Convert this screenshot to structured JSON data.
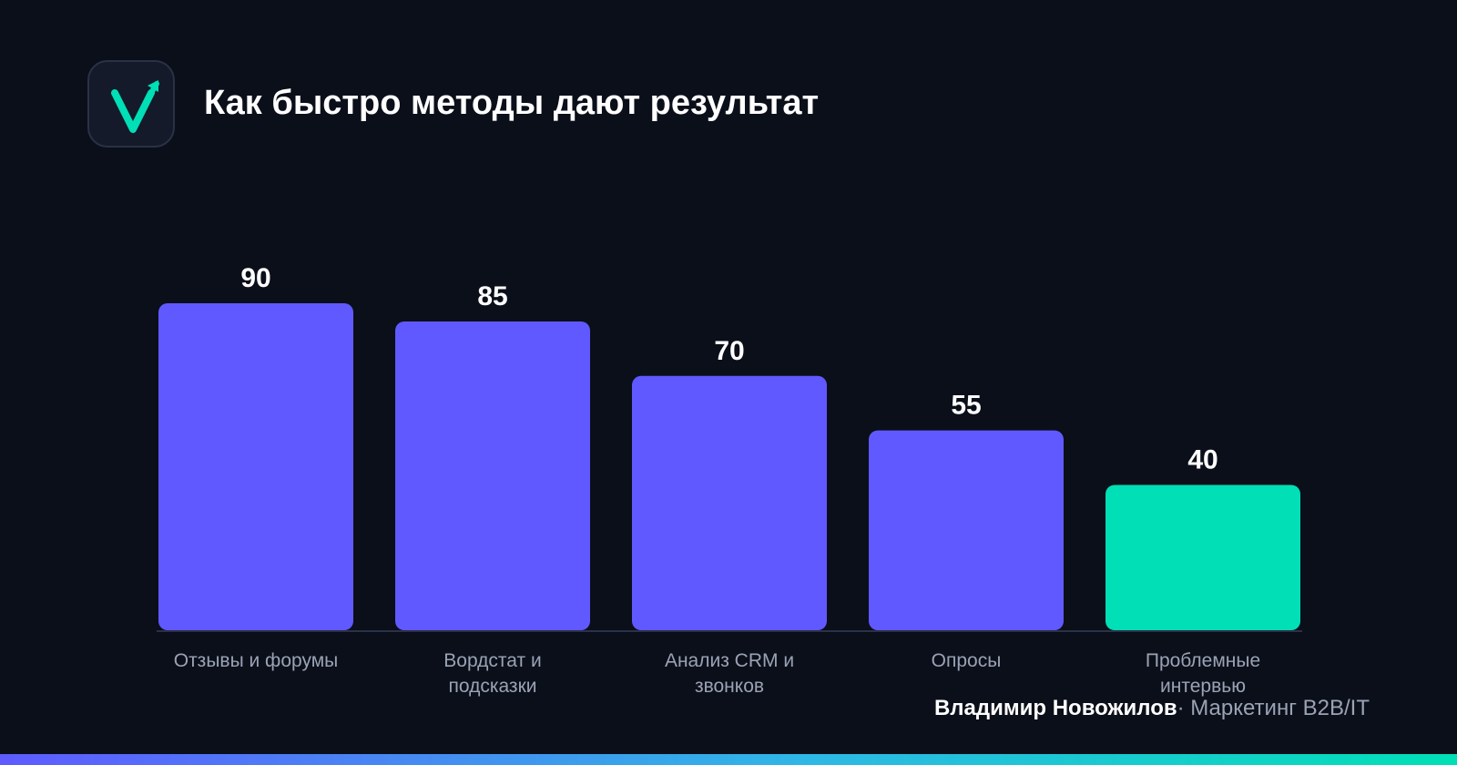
{
  "header": {
    "logo_icon": "checkmark-arrow-icon",
    "title": "Как быстро методы дают результат"
  },
  "chart_data": {
    "type": "bar",
    "title": "Как быстро методы дают результат",
    "categories": [
      "Отзывы и форумы",
      "Вордстат и подсказки",
      "Анализ CRM и звонков",
      "Опросы",
      "Проблемные интервью"
    ],
    "values": [
      90,
      85,
      70,
      55,
      40
    ],
    "bar_colors": [
      "#6059ff",
      "#6059ff",
      "#6059ff",
      "#6059ff",
      "#00dfb6"
    ],
    "highlight_color": "#00dfb6",
    "base_color": "#6059ff",
    "xlabel": "",
    "ylabel": "",
    "ylim": [
      0,
      90
    ],
    "grid": false,
    "legend": "none"
  },
  "footer": {
    "author": "Владимир Новожилов",
    "separator": "·",
    "role": "Маркетинг B2B/IT"
  },
  "colors": {
    "background": "#0b0f1a",
    "accent": "#6059ff",
    "highlight": "#00dfb6",
    "muted_text": "#9aa3b5"
  }
}
